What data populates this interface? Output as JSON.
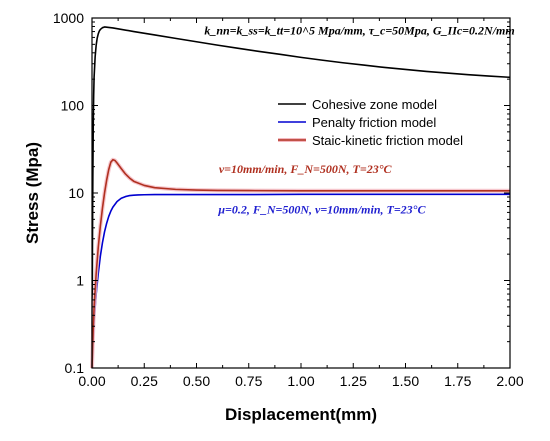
{
  "chart_data": {
    "type": "line",
    "xlabel": "Displacement(mm)",
    "ylabel": "Stress (Mpa)",
    "xlim": [
      0,
      2.0
    ],
    "ylim": [
      0.1,
      1000
    ],
    "yscale": "log",
    "xticks": [
      "0.00",
      "0.25",
      "0.50",
      "0.75",
      "1.00",
      "1.25",
      "1.50",
      "1.75",
      "2.00"
    ],
    "yticks": [
      "0.1",
      "1",
      "10",
      "100",
      "1000"
    ],
    "legend_position": "upper-center",
    "series": [
      {
        "name": "Cohesive zone model",
        "color": "#000000",
        "x": [
          0.0,
          0.002,
          0.004,
          0.006,
          0.008,
          0.01,
          0.015,
          0.02,
          0.025,
          0.03,
          0.035,
          0.04,
          0.05,
          0.06,
          0.08,
          0.1,
          0.2,
          0.3,
          0.4,
          0.5,
          0.6,
          0.7,
          0.8,
          0.9,
          1.0,
          1.1,
          1.2,
          1.3,
          1.4,
          1.5,
          1.6,
          1.7,
          1.8,
          1.9,
          2.0
        ],
        "y": [
          0.1,
          2,
          15,
          60,
          130,
          210,
          360,
          490,
          590,
          660,
          710,
          740,
          775,
          790,
          780,
          770,
          700,
          640,
          585,
          535,
          490,
          450,
          415,
          385,
          355,
          330,
          308,
          290,
          272,
          258,
          245,
          235,
          225,
          217,
          210
        ]
      },
      {
        "name": "Penalty friction model",
        "color": "#0000d0",
        "x": [
          0.0,
          0.005,
          0.01,
          0.02,
          0.03,
          0.04,
          0.05,
          0.06,
          0.07,
          0.08,
          0.09,
          0.1,
          0.12,
          0.14,
          0.16,
          0.18,
          0.2,
          0.22,
          0.25,
          0.3,
          0.4,
          0.5,
          0.75,
          1.0,
          1.25,
          1.5,
          1.75,
          2.0
        ],
        "y": [
          0.1,
          0.2,
          0.35,
          0.7,
          1.2,
          1.9,
          2.7,
          3.6,
          4.5,
          5.4,
          6.2,
          6.9,
          8.0,
          8.7,
          9.1,
          9.35,
          9.45,
          9.5,
          9.55,
          9.6,
          9.6,
          9.6,
          9.6,
          9.65,
          9.65,
          9.65,
          9.65,
          9.65
        ]
      },
      {
        "name": "Staic-kinetic friction model",
        "color": "#b03020",
        "x": [
          0.0,
          0.005,
          0.01,
          0.02,
          0.03,
          0.04,
          0.05,
          0.06,
          0.07,
          0.08,
          0.09,
          0.1,
          0.11,
          0.12,
          0.14,
          0.16,
          0.18,
          0.2,
          0.25,
          0.3,
          0.4,
          0.5,
          0.6,
          0.75,
          1.0,
          1.25,
          1.5,
          1.75,
          2.0
        ],
        "y": [
          0.1,
          0.25,
          0.5,
          1.2,
          2.4,
          4.2,
          6.7,
          10,
          14,
          18.5,
          22.5,
          24,
          23.5,
          22,
          19,
          16.5,
          14.8,
          13.6,
          12.2,
          11.5,
          11.0,
          10.8,
          10.7,
          10.65,
          10.6,
          10.6,
          10.6,
          10.6,
          10.6
        ]
      }
    ],
    "annotations": [
      {
        "text": "k_nn=k_ss=k_tt=10^5 Mpa/mm, τ_c=50Mpa, G_IIc=0.2N/mm",
        "color": "#000000",
        "x": 1.28,
        "y": 650
      },
      {
        "text": "v=10mm/min, F_N=500N, T=23°C",
        "color": "#b03020",
        "x": 1.02,
        "y": 17
      },
      {
        "text": "μ=0.2, F_N=500N, v=10mm/min, T=23°C",
        "color": "#1f1fd0",
        "x": 1.1,
        "y": 5.8
      }
    ]
  }
}
